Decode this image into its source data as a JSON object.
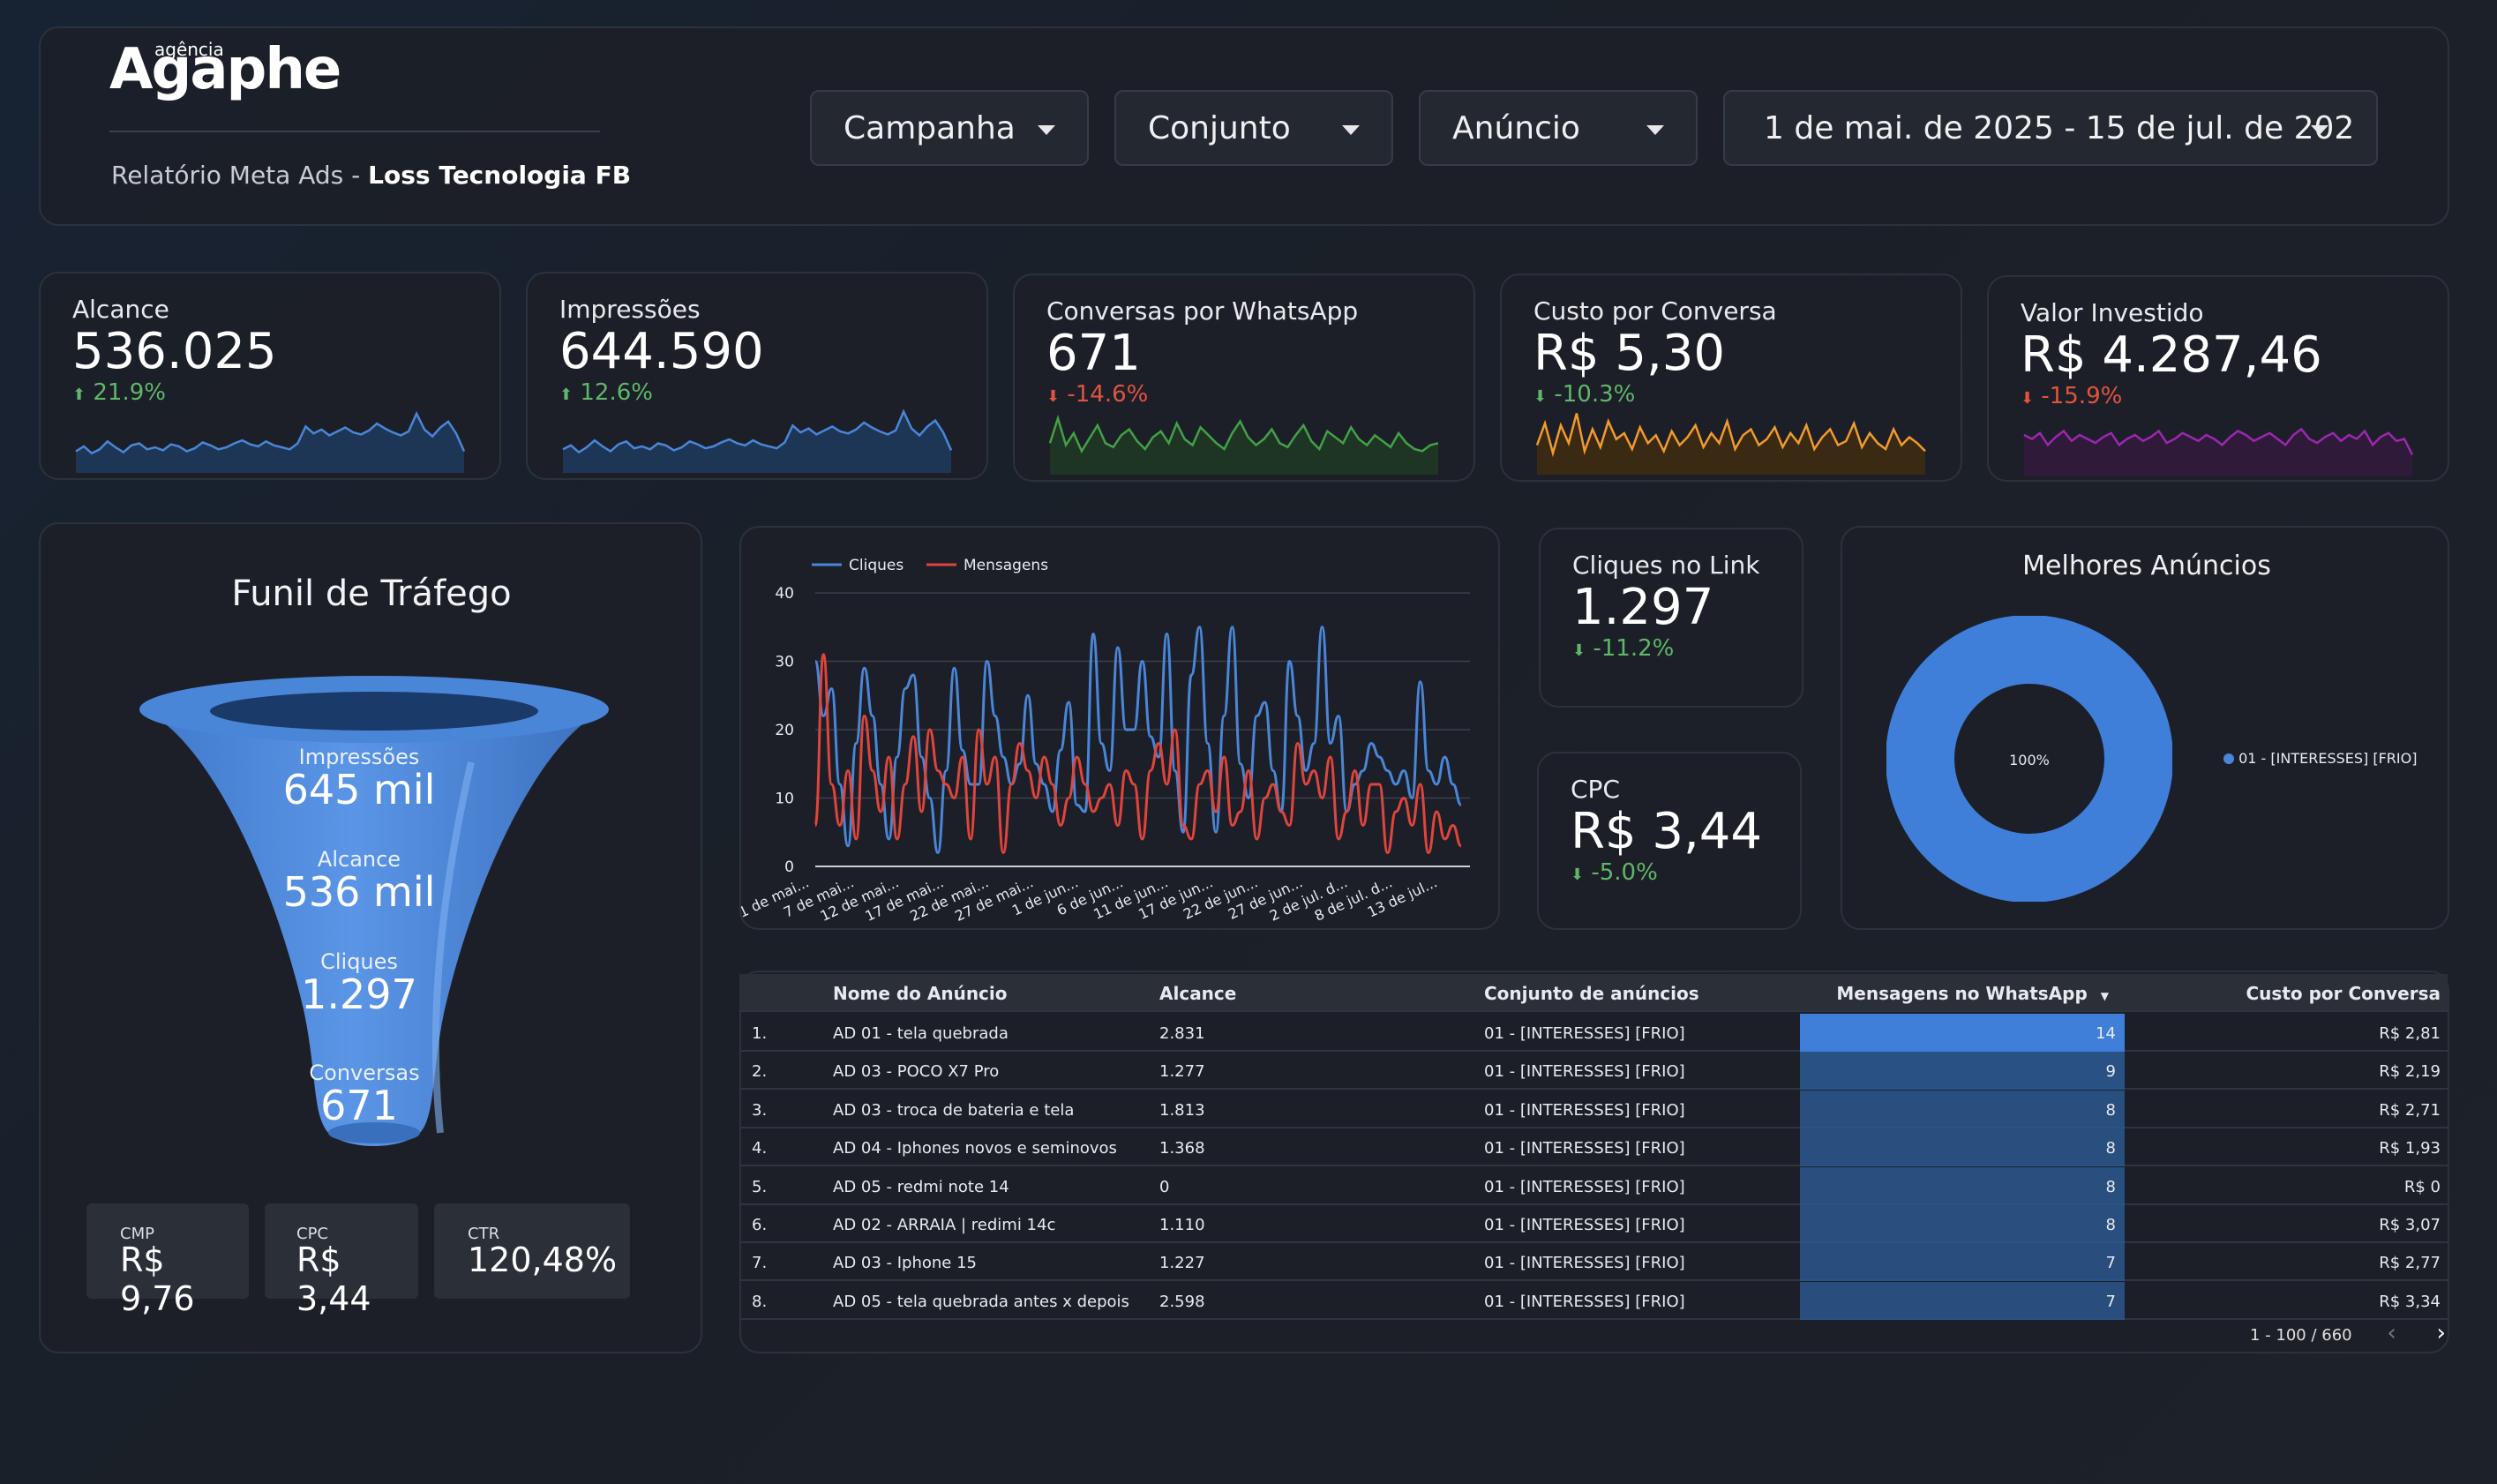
{
  "header": {
    "logo_small": "agência",
    "logo_word": "Agaphe",
    "subtitle_prefix": "Relatório Meta Ads - ",
    "subtitle_client": "Loss Tecnologia FB",
    "filters": {
      "campanha": "Campanha",
      "conjunto": "Conjunto",
      "anuncio": "Anúncio",
      "date_range": "1 de mai. de 2025 - 15 de jul. de 202"
    }
  },
  "kpis": [
    {
      "label": "Alcance",
      "value": "536.025",
      "arrow": "⬆",
      "delta": "21.9%",
      "color": "#4a86d8",
      "fill": "#1e3656",
      "spark": [
        20,
        25,
        18,
        22,
        30,
        24,
        19,
        26,
        28,
        22,
        24,
        21,
        27,
        25,
        20,
        23,
        29,
        26,
        22,
        24,
        28,
        31,
        27,
        25,
        30,
        26,
        24,
        22,
        28,
        45,
        38,
        42,
        36,
        40,
        44,
        39,
        37,
        41,
        48,
        43,
        39,
        36,
        40,
        58,
        42,
        35,
        44,
        50,
        38,
        20
      ]
    },
    {
      "label": "Impressões",
      "value": "644.590",
      "arrow": "⬆",
      "delta": "12.6%",
      "color": "#4a86d8",
      "fill": "#1e3656",
      "spark": [
        22,
        26,
        19,
        24,
        31,
        25,
        20,
        27,
        30,
        23,
        25,
        22,
        28,
        26,
        21,
        24,
        30,
        27,
        23,
        25,
        29,
        32,
        28,
        26,
        31,
        27,
        25,
        23,
        29,
        46,
        39,
        43,
        37,
        41,
        45,
        40,
        38,
        42,
        49,
        44,
        40,
        37,
        41,
        60,
        43,
        36,
        45,
        51,
        39,
        21
      ]
    },
    {
      "label": "Conversas por WhatsApp",
      "value": "671",
      "arrow": "⬇",
      "delta": "-14.6%",
      "color": "#43a047",
      "fill": "#1f3524",
      "dcls": "down-r",
      "spark": [
        30,
        55,
        28,
        40,
        22,
        35,
        48,
        30,
        26,
        38,
        44,
        32,
        24,
        36,
        42,
        30,
        50,
        34,
        28,
        46,
        38,
        30,
        24,
        40,
        52,
        36,
        28,
        34,
        44,
        30,
        26,
        38,
        48,
        32,
        24,
        42,
        36,
        30,
        46,
        34,
        28,
        38,
        32,
        26,
        40,
        30,
        24,
        22,
        28,
        30
      ]
    },
    {
      "label": "Custo por Conversa",
      "value": "R$ 5,30",
      "arrow": "⬇",
      "delta": "-10.3%",
      "color": "#f29b2b",
      "fill": "#3a2a14",
      "dcls": "down-g",
      "spark": [
        28,
        50,
        20,
        48,
        30,
        60,
        22,
        44,
        26,
        52,
        34,
        40,
        24,
        46,
        30,
        38,
        22,
        42,
        28,
        36,
        48,
        26,
        40,
        30,
        52,
        24,
        38,
        44,
        28,
        34,
        46,
        26,
        40,
        30,
        48,
        24,
        36,
        44,
        28,
        32,
        50,
        26,
        40,
        30,
        24,
        44,
        28,
        36,
        30,
        22
      ]
    },
    {
      "label": "Valor Investido",
      "value": "R$ 4.287,46",
      "arrow": "⬇",
      "delta": "-15.9%",
      "color": "#9c27b0",
      "fill": "#2f1a3a",
      "dcls": "down-r",
      "spark": [
        40,
        36,
        42,
        30,
        38,
        44,
        34,
        40,
        36,
        32,
        38,
        42,
        30,
        36,
        40,
        34,
        38,
        44,
        32,
        36,
        42,
        38,
        34,
        40,
        36,
        30,
        38,
        44,
        40,
        34,
        38,
        42,
        36,
        30,
        40,
        46,
        36,
        32,
        38,
        42,
        34,
        40,
        36,
        44,
        30,
        38,
        42,
        34,
        36,
        20
      ]
    }
  ],
  "funnel": {
    "title": "Funil de Tráfego",
    "stages": [
      {
        "label": "Impressões",
        "value": "645 mil"
      },
      {
        "label": "Alcance",
        "value": "536 mil"
      },
      {
        "label": "Cliques",
        "value": "1.297"
      },
      {
        "label": "Conversas",
        "value": "671"
      }
    ],
    "minis": [
      {
        "label": "CMP",
        "value": "R$ 9,76"
      },
      {
        "label": "CPC",
        "value": "R$ 3,44"
      },
      {
        "label": "CTR",
        "value": "120,48%"
      }
    ]
  },
  "chart_data": {
    "type": "line",
    "title": "",
    "xlabel": "",
    "ylabel": "",
    "ylim": [
      0,
      40
    ],
    "yticks": [
      0,
      10,
      20,
      30,
      40
    ],
    "x_tick_labels": [
      "1 de mai...",
      "7 de mai...",
      "12 de mai...",
      "17 de mai...",
      "22 de mai...",
      "27 de mai...",
      "1 de jun...",
      "6 de jun...",
      "11 de jun...",
      "17 de jun...",
      "22 de jun...",
      "27 de jun...",
      "2 de jul. d...",
      "8 de jul. d...",
      "13 de jul..."
    ],
    "series": [
      {
        "name": "Cliques",
        "color": "#4a86d8",
        "values": [
          30,
          22,
          26,
          12,
          3,
          18,
          29,
          22,
          12,
          4,
          16,
          26,
          28,
          16,
          10,
          2,
          14,
          29,
          17,
          12,
          12,
          30,
          22,
          16,
          12,
          15,
          25,
          15,
          12,
          8,
          17,
          24,
          9,
          8,
          34,
          18,
          14,
          32,
          20,
          20,
          30,
          19,
          16,
          34,
          14,
          5,
          28,
          35,
          18,
          5,
          22,
          35,
          15,
          10,
          22,
          24,
          14,
          8,
          30,
          22,
          14,
          18,
          35,
          18,
          22,
          8,
          12,
          14,
          18,
          16,
          14,
          12,
          14,
          10,
          27,
          14,
          12,
          16,
          12,
          9
        ]
      },
      {
        "name": "Mensagens",
        "color": "#e0453c",
        "values": [
          6,
          31,
          12,
          6,
          14,
          4,
          22,
          14,
          8,
          16,
          4,
          12,
          19,
          8,
          20,
          14,
          12,
          10,
          16,
          4,
          20,
          12,
          16,
          2,
          12,
          18,
          14,
          10,
          16,
          12,
          6,
          10,
          16,
          12,
          8,
          10,
          12,
          6,
          14,
          12,
          4,
          14,
          18,
          12,
          20,
          6,
          4,
          12,
          14,
          8,
          16,
          6,
          8,
          14,
          4,
          10,
          12,
          8,
          6,
          18,
          12,
          14,
          10,
          16,
          4,
          8,
          14,
          6,
          12,
          12,
          2,
          8,
          10,
          6,
          12,
          2,
          8,
          4,
          6,
          3
        ]
      }
    ]
  },
  "cliques_link": {
    "label": "Cliques no Link",
    "value": "1.297",
    "arrow": "⬇",
    "delta": "-11.2%"
  },
  "cpc": {
    "label": "CPC",
    "value": "R$ 3,44",
    "arrow": "⬇",
    "delta": "-5.0%"
  },
  "melhores": {
    "title": "Melhores Anúncios",
    "center": "100%",
    "legend": "01 - [INTERESSES] [FRIO]",
    "color": "#4a86d8"
  },
  "table": {
    "headers": {
      "nome": "Nome do Anúncio",
      "alcance": "Alcance",
      "conjunto": "Conjunto de anúncios",
      "mensagens": "Mensagens no WhatsApp",
      "custo": "Custo por Conversa"
    },
    "rows": [
      {
        "idx": "1.",
        "nome": "AD 01 - tela quebrada",
        "alcance": "2.831",
        "conjunto": "01 - [INTERESSES] [FRIO]",
        "mensagens": "14",
        "custo": "R$ 2,81"
      },
      {
        "idx": "2.",
        "nome": "AD 03 - POCO X7 Pro",
        "alcance": "1.277",
        "conjunto": "01 - [INTERESSES] [FRIO]",
        "mensagens": "9",
        "custo": "R$ 2,19"
      },
      {
        "idx": "3.",
        "nome": "AD 03 - troca de bateria e tela",
        "alcance": "1.813",
        "conjunto": "01 - [INTERESSES] [FRIO]",
        "mensagens": "8",
        "custo": "R$ 2,71"
      },
      {
        "idx": "4.",
        "nome": "AD 04 - Iphones novos e seminovos",
        "alcance": "1.368",
        "conjunto": "01 - [INTERESSES] [FRIO]",
        "mensagens": "8",
        "custo": "R$ 1,93"
      },
      {
        "idx": "5.",
        "nome": "AD 05 - redmi note 14",
        "alcance": "0",
        "conjunto": "01 - [INTERESSES] [FRIO]",
        "mensagens": "8",
        "custo": "R$ 0"
      },
      {
        "idx": "6.",
        "nome": "AD 02 - ARRAIA | redimi 14c",
        "alcance": "1.110",
        "conjunto": "01 - [INTERESSES] [FRIO]",
        "mensagens": "8",
        "custo": "R$ 3,07"
      },
      {
        "idx": "7.",
        "nome": "AD 03 - Iphone 15",
        "alcance": "1.227",
        "conjunto": "01 - [INTERESSES] [FRIO]",
        "mensagens": "7",
        "custo": "R$ 2,77"
      },
      {
        "idx": "8.",
        "nome": "AD 05 - tela quebrada antes x depois",
        "alcance": "2.598",
        "conjunto": "01 - [INTERESSES] [FRIO]",
        "mensagens": "7",
        "custo": "R$ 3,34"
      }
    ],
    "pagination": "1 - 100 / 660"
  }
}
